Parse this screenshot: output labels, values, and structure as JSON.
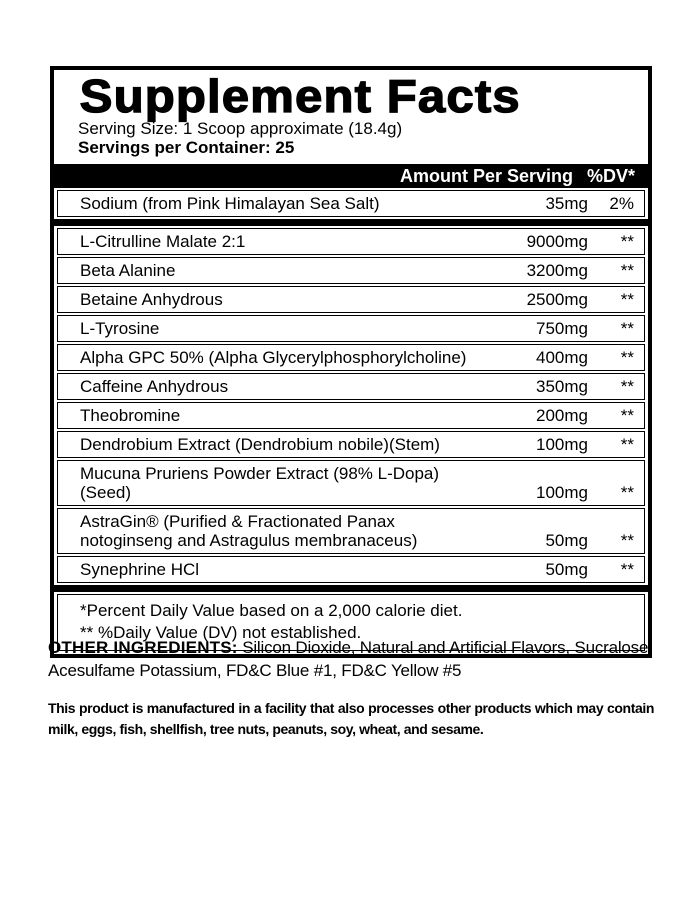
{
  "colors": {
    "ink": "#000000",
    "background": "#ffffff"
  },
  "label": {
    "title": "Supplement Facts",
    "serving_size": "Serving Size: 1 Scoop approximate (18.4g)",
    "servings_per_container": "Servings per Container: 25",
    "header": {
      "amount": "Amount Per Serving",
      "dv": "%DV*"
    },
    "sodium_row": {
      "name": "Sodium (from Pink Himalayan Sea Salt)",
      "amount": "35mg",
      "dv": "2%"
    },
    "rows": [
      {
        "name": "L-Citrulline Malate 2:1",
        "amount": "9000mg",
        "dv": "**"
      },
      {
        "name": "Beta Alanine",
        "amount": "3200mg",
        "dv": "**"
      },
      {
        "name": "Betaine Anhydrous",
        "amount": "2500mg",
        "dv": "**"
      },
      {
        "name": "L-Tyrosine",
        "amount": "750mg",
        "dv": "**"
      },
      {
        "name": "Alpha GPC 50% (Alpha Glycerylphosphorylcholine)",
        "amount": "400mg",
        "dv": "**"
      },
      {
        "name": "Caffeine Anhydrous",
        "amount": "350mg",
        "dv": "**"
      },
      {
        "name": "Theobromine",
        "amount": "200mg",
        "dv": "**"
      },
      {
        "name": "Dendrobium Extract (Dendrobium nobile)(Stem)",
        "amount": "100mg",
        "dv": "**"
      },
      {
        "name": "Mucuna Pruriens Powder Extract (98% L-Dopa)(Seed)",
        "amount": "100mg",
        "dv": "**"
      },
      {
        "name": "AstraGin® (Purified & Fractionated Panax notoginseng and Astragulus membranaceus)",
        "amount": "50mg",
        "dv": "**"
      },
      {
        "name": "Synephrine HCl",
        "amount": "50mg",
        "dv": "**"
      }
    ],
    "footnotes": [
      "*Percent Daily Value based on a 2,000 calorie diet.",
      "** %Daily Value (DV) not established."
    ]
  },
  "other_ingredients": {
    "label": "OTHER INGREDIENTS:",
    "text": "Silicon Dioxide, Natural and Artificial Flavors, Sucralose, Acesulfame Potassium, FD&C Blue #1, FD&C Yellow #5"
  },
  "allergen_notice": "This product is manufactured in a facility that also processes other products which may contain milk, eggs, fish, shellfish, tree nuts, peanuts, soy, wheat, and sesame."
}
